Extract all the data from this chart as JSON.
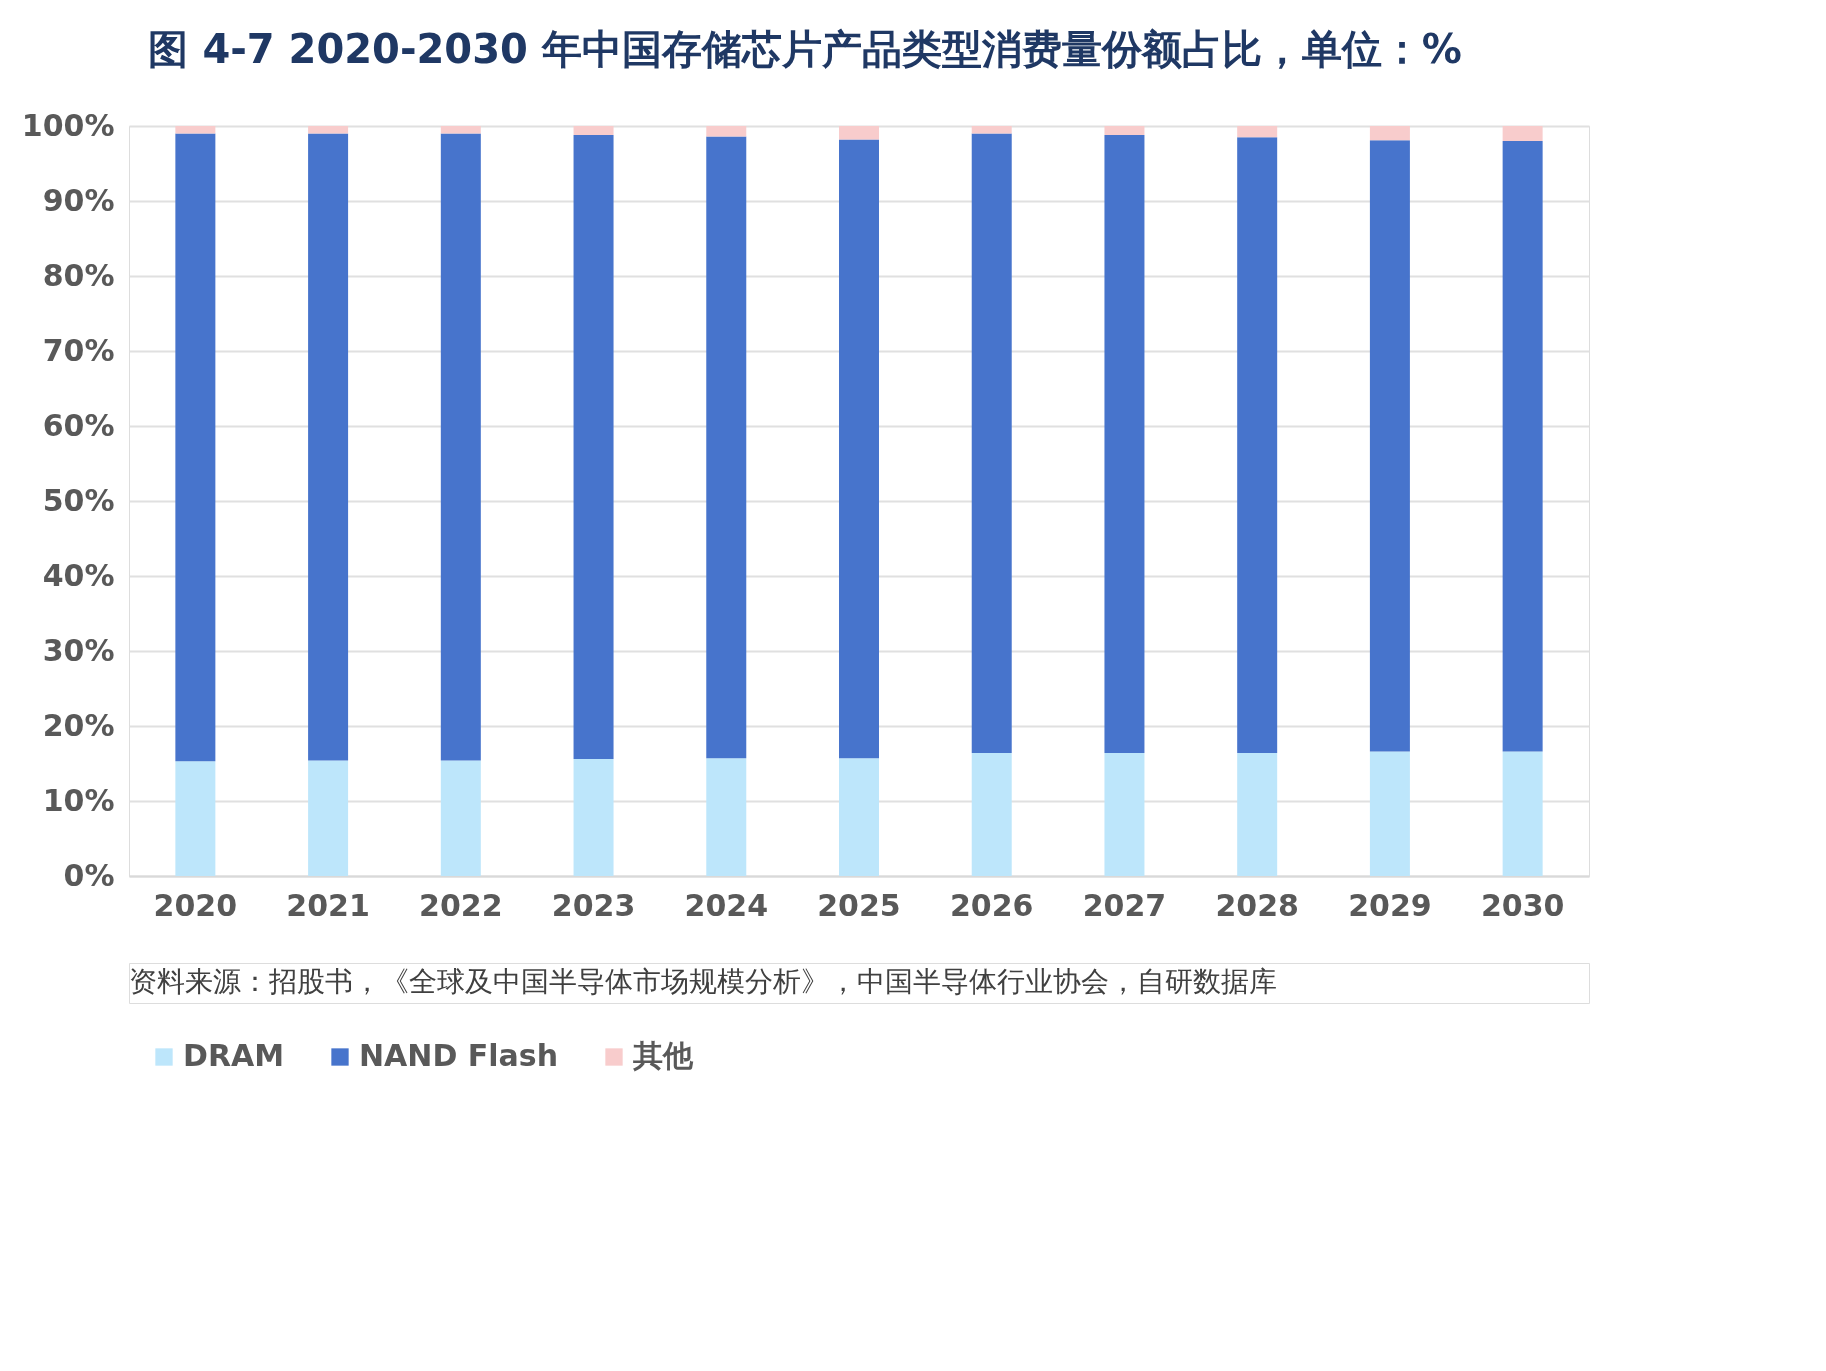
{
  "chart_data": {
    "type": "bar",
    "title": "图  4-7 2020-2030 年中国存储芯片产品类型消费量份额占比，单位：%",
    "categories": [
      "2020",
      "2021",
      "2022",
      "2023",
      "2024",
      "2025",
      "2026",
      "2027",
      "2028",
      "2029",
      "2030"
    ],
    "stacked": true,
    "series": [
      {
        "name": "DRAM",
        "color": "#bde6fb",
        "values": [
          15.3,
          15.4,
          15.4,
          15.6,
          15.7,
          15.7,
          16.4,
          16.4,
          16.4,
          16.6,
          16.6
        ]
      },
      {
        "name": "NAND Flash",
        "color": "#4774cc",
        "values": [
          83.7,
          83.6,
          83.6,
          83.2,
          82.9,
          82.5,
          82.6,
          82.4,
          82.1,
          81.5,
          81.4
        ]
      },
      {
        "name": "其他",
        "color": "#f8cccc",
        "values": [
          1.0,
          1.0,
          1.0,
          1.2,
          1.4,
          1.8,
          1.0,
          1.2,
          1.5,
          1.9,
          2.0
        ]
      }
    ],
    "ylim": [
      0,
      100
    ],
    "yticks": [
      {
        "value": 0,
        "label": "0%"
      },
      {
        "value": 10,
        "label": "10%"
      },
      {
        "value": 20,
        "label": "20%"
      },
      {
        "value": 30,
        "label": "30%"
      },
      {
        "value": 40,
        "label": "40%"
      },
      {
        "value": 50,
        "label": "50%"
      },
      {
        "value": 60,
        "label": "60%"
      },
      {
        "value": 70,
        "label": "70%"
      },
      {
        "value": 80,
        "label": "80%"
      },
      {
        "value": 90,
        "label": "90%"
      },
      {
        "value": 100,
        "label": "100%"
      }
    ],
    "grid": "y",
    "legend": "bottom",
    "annotations": [
      "资料来源：招股书，《全球及中国半导体市场规模分析》，中国半导体行业协会，自研数据库"
    ]
  }
}
